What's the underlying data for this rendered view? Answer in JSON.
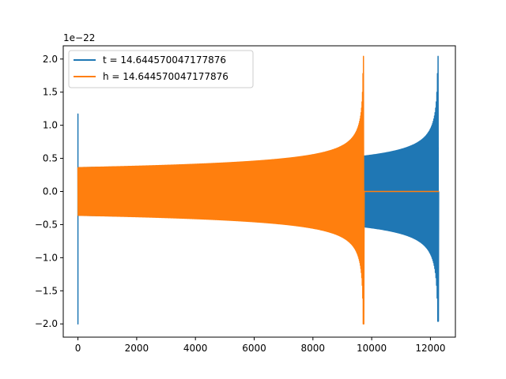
{
  "chart_data": {
    "type": "line",
    "scale_label": "1e−22",
    "xlim": [
      -500,
      12850
    ],
    "ylim": [
      -2.2,
      2.2
    ],
    "x_ticks": [
      0,
      2000,
      4000,
      6000,
      8000,
      10000,
      12000
    ],
    "x_tick_labels": [
      "0",
      "2000",
      "4000",
      "6000",
      "8000",
      "10000",
      "12000"
    ],
    "y_ticks": [
      2.0,
      1.5,
      1.0,
      0.5,
      0.0,
      -0.5,
      -1.0,
      -1.5,
      -2.0
    ],
    "y_tick_labels": [
      "2.0",
      "1.5",
      "1.0",
      "0.5",
      "0.0",
      "−0.5",
      "−1.0",
      "−1.5",
      "−2.0"
    ],
    "grid": false,
    "legend_position": "top-left",
    "series": [
      {
        "name": "t = 14.644570047177876",
        "color": "#1f77b4",
        "x_start": 0,
        "x_end": 12290,
        "peak_x": 12260,
        "initial_spike": [
          1.17,
          -2.0
        ],
        "initial_amplitude": 0.36,
        "amplitude_at_9800": 0.5,
        "final_peak": [
          2.04,
          -1.96
        ]
      },
      {
        "name": "h = 14.644570047177876",
        "color": "#ff7f0e",
        "x_start": 0,
        "x_end": 12290,
        "peak_x": 9720,
        "initial_amplitude": 0.36,
        "final_peak": [
          2.04,
          -2.0
        ],
        "after_merger_value": 0.0
      }
    ]
  }
}
